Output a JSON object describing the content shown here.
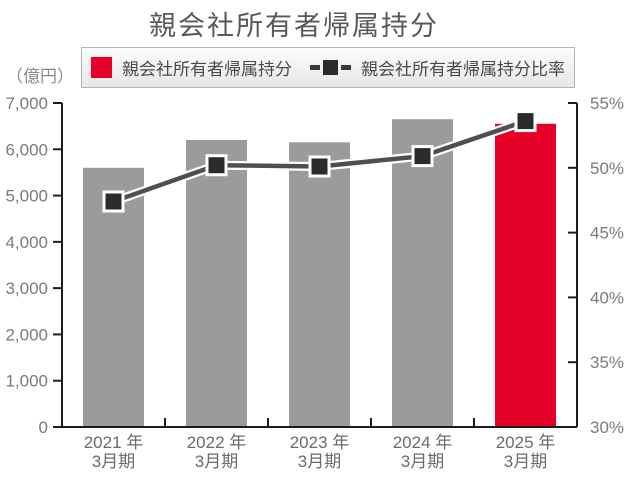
{
  "title": "親会社所有者帰属持分",
  "unit_label": "（億円）",
  "legend": {
    "bar_label": "親会社所有者帰属持分",
    "line_label": "親会社所有者帰属持分比率"
  },
  "colors": {
    "bar_gray": "#9b9b9b",
    "bar_red": "#e50028",
    "line": "#4f4f4f",
    "line_casing": "#ffffff",
    "marker_fill": "#2b2b2b",
    "marker_stroke": "#ffffff",
    "axis": "#1c1c1c",
    "title_text": "#595959",
    "tick_text": "#7b7b7b"
  },
  "chart_data": {
    "type": "bar+line combo",
    "title": "親会社所有者帰属持分",
    "categories": [
      {
        "line1": "2021 年",
        "line2": "3月期"
      },
      {
        "line1": "2022 年",
        "line2": "3月期"
      },
      {
        "line1": "2023 年",
        "line2": "3月期"
      },
      {
        "line1": "2024 年",
        "line2": "3月期"
      },
      {
        "line1": "2025 年",
        "line2": "3月期"
      }
    ],
    "series": [
      {
        "name": "親会社所有者帰属持分",
        "type": "bar",
        "axis": "left",
        "unit": "億円",
        "values": [
          5600,
          6200,
          6150,
          6650,
          6550
        ],
        "bar_colors": [
          "#9b9b9b",
          "#9b9b9b",
          "#9b9b9b",
          "#9b9b9b",
          "#e50028"
        ]
      },
      {
        "name": "親会社所有者帰属持分比率",
        "type": "line",
        "axis": "right",
        "unit": "%",
        "values": [
          47.4,
          50.2,
          50.1,
          50.9,
          53.6
        ]
      }
    ],
    "left_axis": {
      "label": "（億円）",
      "min": 0,
      "max": 7000,
      "step": 1000,
      "tick_values": [
        0,
        1000,
        2000,
        3000,
        4000,
        5000,
        6000,
        7000
      ],
      "tick_labels": [
        "0",
        "1,000",
        "2,000",
        "3,000",
        "4,000",
        "5,000",
        "6,000",
        "7,000"
      ]
    },
    "right_axis": {
      "min": 30,
      "max": 55,
      "step": 5,
      "tick_values": [
        30,
        35,
        40,
        45,
        50,
        55
      ],
      "tick_labels": [
        "30%",
        "35%",
        "40%",
        "45%",
        "50%",
        "55%"
      ]
    },
    "grid": false,
    "legend_position": "top"
  }
}
